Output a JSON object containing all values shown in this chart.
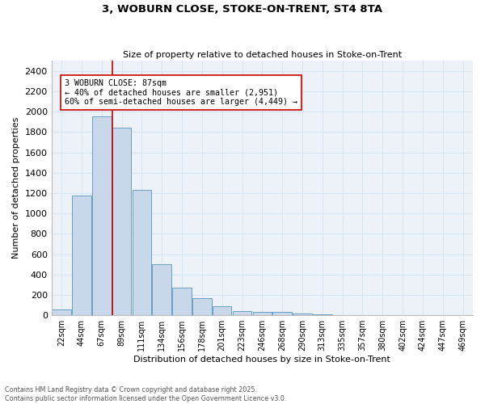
{
  "title_line1": "3, WOBURN CLOSE, STOKE-ON-TRENT, ST4 8TA",
  "title_line2": "Size of property relative to detached houses in Stoke-on-Trent",
  "xlabel": "Distribution of detached houses by size in Stoke-on-Trent",
  "ylabel": "Number of detached properties",
  "categories": [
    "22sqm",
    "44sqm",
    "67sqm",
    "89sqm",
    "111sqm",
    "134sqm",
    "156sqm",
    "178sqm",
    "201sqm",
    "223sqm",
    "246sqm",
    "268sqm",
    "290sqm",
    "313sqm",
    "335sqm",
    "357sqm",
    "380sqm",
    "402sqm",
    "424sqm",
    "447sqm",
    "469sqm"
  ],
  "values": [
    55,
    1175,
    1950,
    1840,
    1230,
    500,
    270,
    165,
    90,
    40,
    35,
    30,
    15,
    8,
    4,
    2,
    2,
    1,
    1,
    0,
    0
  ],
  "bar_color": "#c8d8ea",
  "bar_edge_color": "#6a9fc0",
  "grid_color": "#d8e4f0",
  "background_color": "#edf2f9",
  "annotation_text": "3 WOBURN CLOSE: 87sqm\n← 40% of detached houses are smaller (2,951)\n60% of semi-detached houses are larger (4,449) →",
  "vline_x": 2.55,
  "vline_color": "#cc0000",
  "annotation_box_facecolor": "#ffffff",
  "annotation_box_edgecolor": "#cc0000",
  "ylim": [
    0,
    2500
  ],
  "yticks": [
    0,
    200,
    400,
    600,
    800,
    1000,
    1200,
    1400,
    1600,
    1800,
    2000,
    2200,
    2400
  ],
  "footer_line1": "Contains HM Land Registry data © Crown copyright and database right 2025.",
  "footer_line2": "Contains public sector information licensed under the Open Government Licence v3.0."
}
